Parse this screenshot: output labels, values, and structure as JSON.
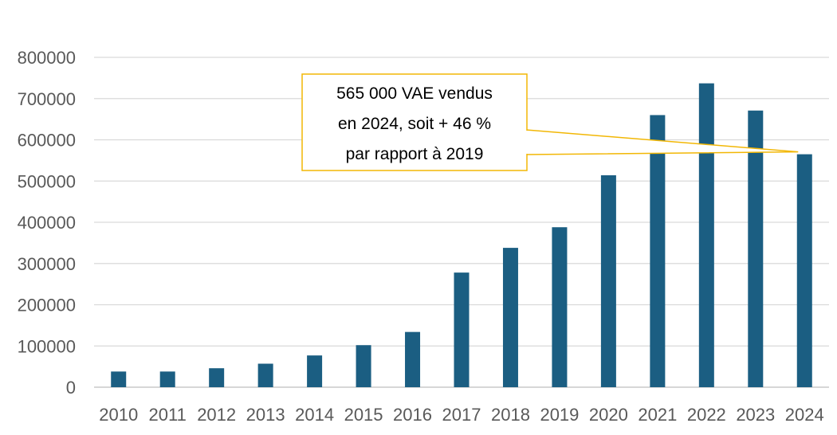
{
  "chart_data": {
    "type": "bar",
    "categories": [
      "2010",
      "2011",
      "2012",
      "2013",
      "2014",
      "2015",
      "2016",
      "2017",
      "2018",
      "2019",
      "2020",
      "2021",
      "2022",
      "2023",
      "2024"
    ],
    "values": [
      38000,
      38000,
      46000,
      57000,
      77000,
      102000,
      134000,
      278000,
      338000,
      388000,
      514000,
      660000,
      737000,
      671000,
      565000
    ],
    "ylim": [
      0,
      800000
    ],
    "yticks": [
      "0",
      "100000",
      "200000",
      "300000",
      "400000",
      "500000",
      "600000",
      "700000",
      "800000"
    ],
    "grid": true,
    "legend": "none",
    "bar_color": "#1B5E82",
    "grid_color": "#D9D9D9",
    "annotation": {
      "lines": [
        "565 000 VAE vendus",
        "en 2024, soit + 46 %",
        "par rapport à 2019"
      ],
      "target_category": "2024",
      "border_color": "#F2B705"
    }
  }
}
